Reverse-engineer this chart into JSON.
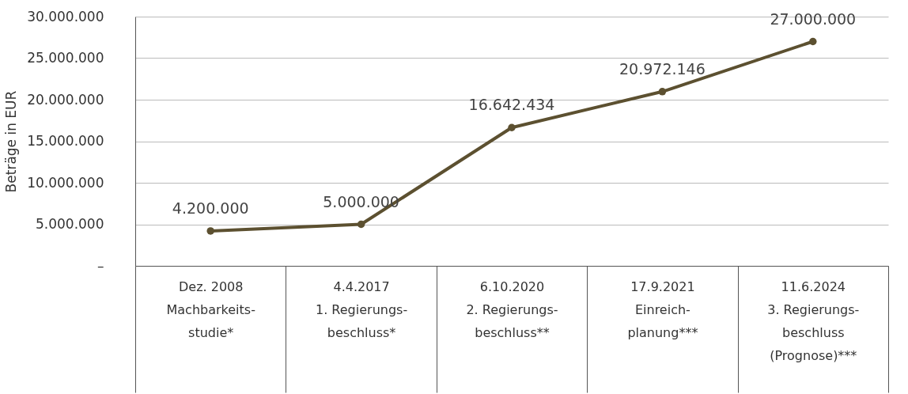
{
  "chart_data": {
    "type": "line",
    "ylabel": "Beträge in EUR",
    "categories": [
      "Dez. 2008\nMachbarkeits-\nstudie*",
      "4.4.2017\n1. Regierungs-\nbeschluss*",
      "6.10.2020\n2. Regierungs-\nbeschluss**",
      "17.9.2021\nEinreich-\nplanung***",
      "11.6.2024\n3. Regierungs-\nbeschluss\n(Prognose)***"
    ],
    "series": [
      {
        "color": "#5c5030",
        "values": [
          4200000,
          5000000,
          16642434,
          20972146,
          27000000
        ],
        "value_labels": [
          "4.200.000",
          "5.000.000",
          "16.642.434",
          "20.972.146",
          "27.000.000"
        ]
      }
    ],
    "ylim": [
      0,
      30000000
    ],
    "yticks": [
      {
        "value": 0,
        "label": "–"
      },
      {
        "value": 5000000,
        "label": "5.000.000"
      },
      {
        "value": 10000000,
        "label": "10.000.000"
      },
      {
        "value": 15000000,
        "label": "15.000.000"
      },
      {
        "value": 20000000,
        "label": "20.000.000"
      },
      {
        "value": 25000000,
        "label": "25.000.000"
      },
      {
        "value": 30000000,
        "label": "30.000.000"
      }
    ],
    "grid": "y",
    "marker": "circle",
    "line_style": "solid"
  }
}
